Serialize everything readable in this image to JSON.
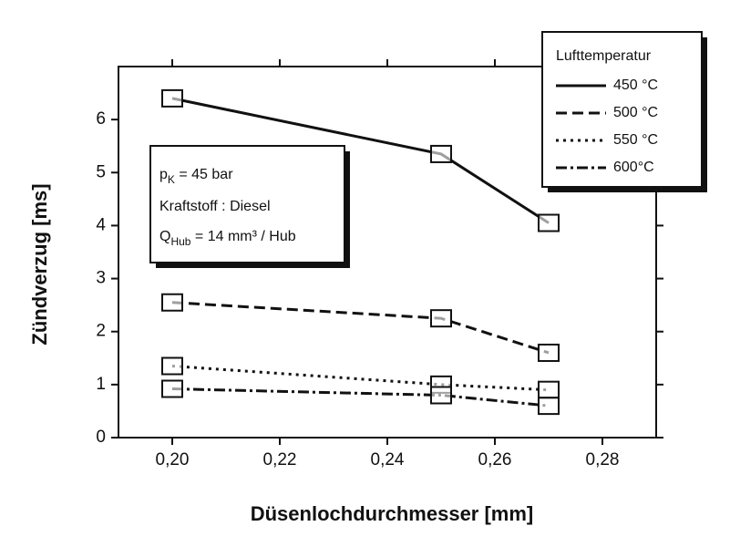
{
  "chart_data": {
    "type": "line",
    "x_label": "Düsenlochdurchmesser [mm]",
    "y_label": "Zündverzug [ms]",
    "x": [
      0.2,
      0.25,
      0.27
    ],
    "series": [
      {
        "name": "450 °C",
        "color": "#111111",
        "line_style": "solid",
        "values": [
          6.4,
          5.35,
          4.05
        ]
      },
      {
        "name": "500 °C",
        "color": "#111111",
        "line_style": "dashed",
        "values": [
          2.55,
          2.25,
          1.6
        ]
      },
      {
        "name": "550 °C",
        "color": "#111111",
        "line_style": "dotted",
        "values": [
          1.35,
          1.0,
          0.9
        ]
      },
      {
        "name": "600°C",
        "color": "#111111",
        "line_style": "dashdot",
        "values": [
          0.92,
          0.8,
          0.6
        ]
      }
    ],
    "xlim": [
      0.19,
      0.29
    ],
    "xticks": [
      {
        "value": 0.2,
        "label": "0,20"
      },
      {
        "value": 0.22,
        "label": "0,22"
      },
      {
        "value": 0.24,
        "label": "0,24"
      },
      {
        "value": 0.26,
        "label": "0,26"
      },
      {
        "value": 0.28,
        "label": "0,28"
      }
    ],
    "ylim": [
      0,
      7
    ],
    "yticks": [
      0,
      1,
      2,
      3,
      4,
      5,
      6
    ],
    "legend_title": "Lufttemperatur",
    "annotation": [
      {
        "text": "p",
        "sub": "K",
        "rest": " = 45 bar"
      },
      {
        "text": "Kraftstoff : Diesel"
      },
      {
        "text": "Q",
        "sub": "Hub",
        "rest": " = 14 mm³ / Hub"
      }
    ]
  }
}
